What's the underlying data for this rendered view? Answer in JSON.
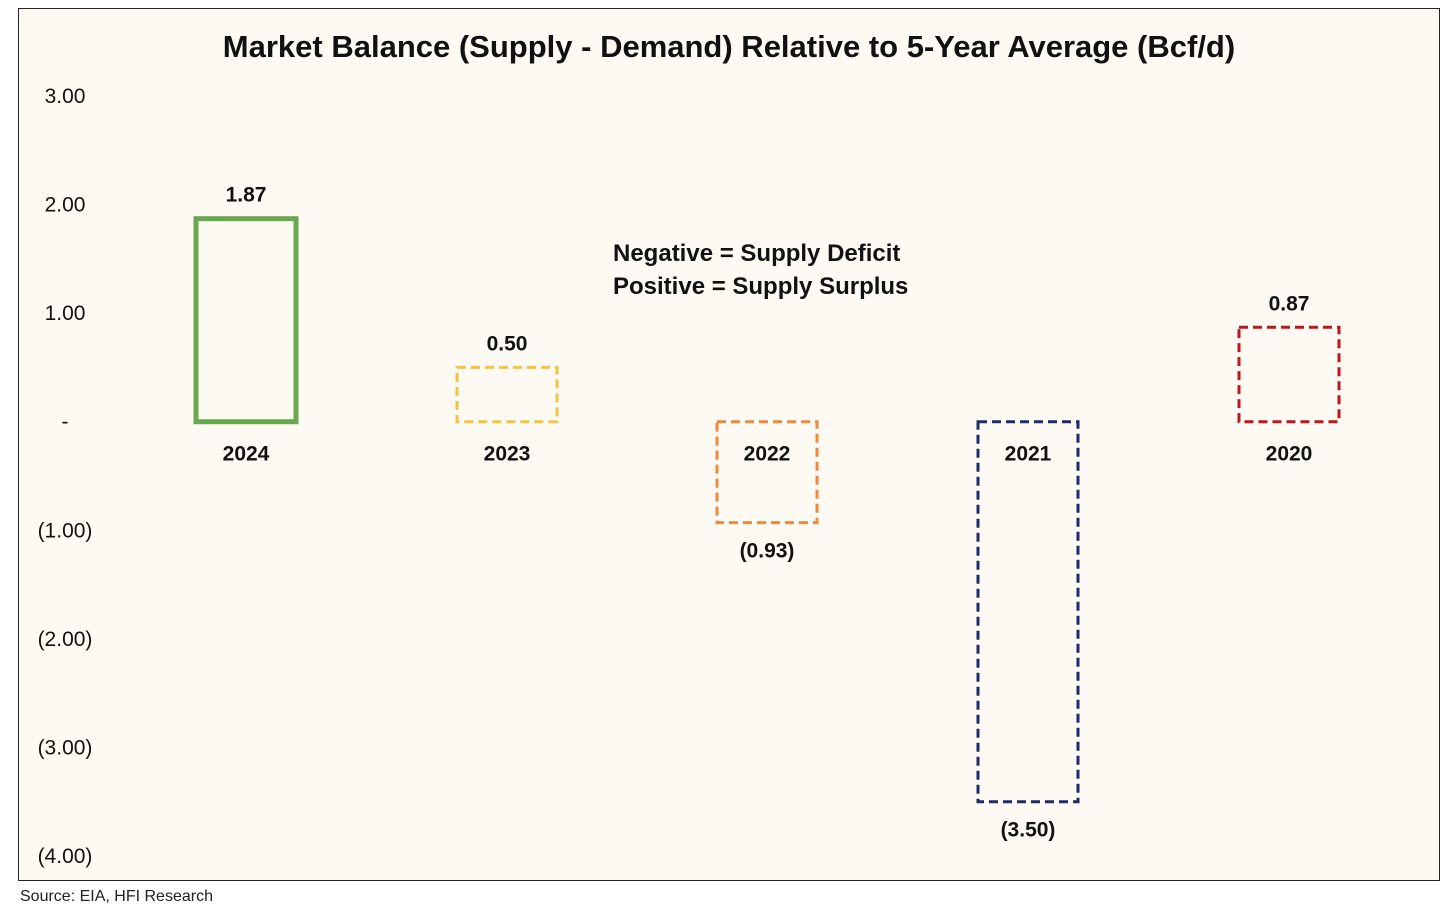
{
  "chart_data": {
    "type": "bar",
    "title": "Market Balance (Supply - Demand) Relative to 5-Year Average (Bcf/d)",
    "categories": [
      "2024",
      "2023",
      "2022",
      "2021",
      "2020"
    ],
    "values": [
      1.87,
      0.5,
      -0.93,
      -3.5,
      0.87
    ],
    "value_labels": [
      "1.87",
      "0.50",
      "(0.93)",
      "(3.50)",
      "0.87"
    ],
    "bar_colors": [
      "#6aa84f",
      "#f5c242",
      "#ef8a3c",
      "#1f2a6b",
      "#c0151f"
    ],
    "bar_styles": [
      "solid",
      "dashed",
      "dashed",
      "dashed",
      "dashed"
    ],
    "ylim": [
      -4,
      3
    ],
    "yticks": [
      3,
      2,
      1,
      0,
      -1,
      -2,
      -3,
      -4
    ],
    "ytick_labels": [
      "3.00",
      "2.00",
      "1.00",
      "-",
      "(1.00)",
      "(2.00)",
      "(3.00)",
      "(4.00)"
    ],
    "xlabel": "",
    "ylabel": "",
    "grid": false,
    "legend": "none",
    "annotations": [
      "Negative = Supply Deficit",
      "Positive = Supply Surplus"
    ],
    "source": "Source: EIA, HFI Research"
  }
}
